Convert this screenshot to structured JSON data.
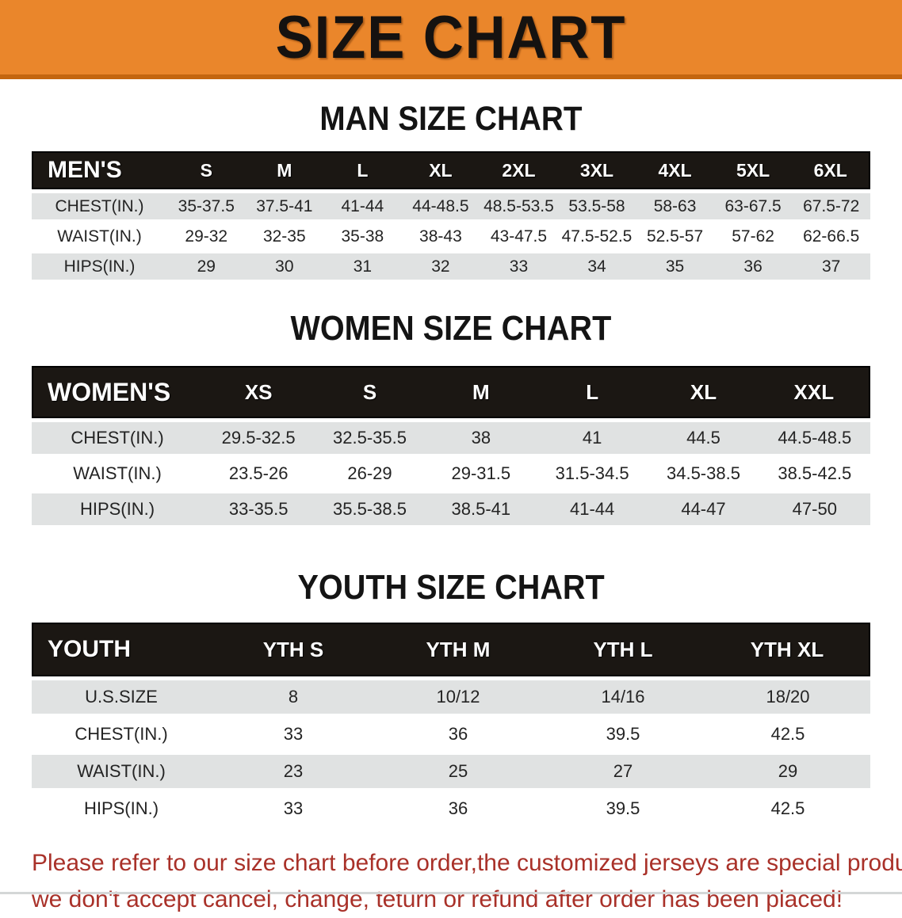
{
  "banner": {
    "title": "SIZE CHART",
    "bg_color": "#EA862B",
    "edge_color": "#C4660F"
  },
  "sections": {
    "men": {
      "title": "MAN SIZE CHART",
      "header_label": "MEN'S",
      "columns": [
        "S",
        "M",
        "L",
        "XL",
        "2XL",
        "3XL",
        "4XL",
        "5XL",
        "6XL"
      ],
      "rows": [
        {
          "label": "CHEST(IN.)",
          "values": [
            "35-37.5",
            "37.5-41",
            "41-44",
            "44-48.5",
            "48.5-53.5",
            "53.5-58",
            "58-63",
            "63-67.5",
            "67.5-72"
          ]
        },
        {
          "label": "WAIST(IN.)",
          "values": [
            "29-32",
            "32-35",
            "35-38",
            "38-43",
            "43-47.5",
            "47.5-52.5",
            "52.5-57",
            "57-62",
            "62-66.5"
          ]
        },
        {
          "label": "HIPS(IN.)",
          "values": [
            "29",
            "30",
            "31",
            "32",
            "33",
            "34",
            "35",
            "36",
            "37"
          ]
        }
      ]
    },
    "women": {
      "title": "WOMEN SIZE CHART",
      "header_label": "WOMEN'S",
      "columns": [
        "XS",
        "S",
        "M",
        "L",
        "XL",
        "XXL"
      ],
      "rows": [
        {
          "label": "CHEST(IN.)",
          "values": [
            "29.5-32.5",
            "32.5-35.5",
            "38",
            "41",
            "44.5",
            "44.5-48.5"
          ]
        },
        {
          "label": "WAIST(IN.)",
          "values": [
            "23.5-26",
            "26-29",
            "29-31.5",
            "31.5-34.5",
            "34.5-38.5",
            "38.5-42.5"
          ]
        },
        {
          "label": "HIPS(IN.)",
          "values": [
            "33-35.5",
            "35.5-38.5",
            "38.5-41",
            "41-44",
            "44-47",
            "47-50"
          ]
        }
      ]
    },
    "youth": {
      "title": "YOUTH SIZE CHART",
      "header_label": "YOUTH",
      "columns": [
        "YTH S",
        "YTH M",
        "YTH L",
        "YTH XL"
      ],
      "rows": [
        {
          "label": "U.S.SIZE",
          "values": [
            "8",
            "10/12",
            "14/16",
            "18/20"
          ]
        },
        {
          "label": "CHEST(IN.)",
          "values": [
            "33",
            "36",
            "39.5",
            "42.5"
          ]
        },
        {
          "label": "WAIST(IN.)",
          "values": [
            "23",
            "25",
            "27",
            "29"
          ]
        },
        {
          "label": "HIPS(IN.)",
          "values": [
            "33",
            "36",
            "39.5",
            "42.5"
          ]
        }
      ]
    }
  },
  "disclaimer": {
    "line1": "Please refer to our size chart before order,the customized jerseys are special products,",
    "line2": "we don't accept cancel, change, teturn or refund after order has been placed!",
    "color": "#A93129"
  }
}
